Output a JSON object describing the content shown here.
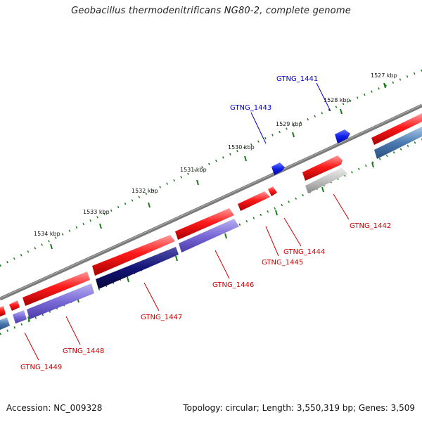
{
  "title": "Geobacillus thermodenitrificans NG80-2, complete genome",
  "footer": {
    "accession": "Accession: NC_009328",
    "summary": "Topology: circular; Length: 3,550,319 bp; Genes: 3,509"
  },
  "colors": {
    "backbone": "#7a7a7a",
    "forward_gene": "#e01010",
    "reverse_gene": "#7060d0",
    "dark_reverse_gene": "#101070",
    "steel_reverse_gene": "#4a7ab0",
    "rna_gene": "#0a10d8",
    "pseudo_gene": "#b8b8b8",
    "tick": "#1a7a1a",
    "label_blue": "#0000cc",
    "label_red": "#cc0000"
  },
  "ticks": [
    "1527 kbp",
    "1528 kbp",
    "1529 kbp",
    "1530 kbp",
    "1531 kbp",
    "1532 kbp",
    "1533 kbp",
    "1534 kbp"
  ],
  "genes": [
    {
      "label": "GTNG_1441",
      "color": "label_blue"
    },
    {
      "label": "GTNG_1443",
      "color": "label_blue"
    },
    {
      "label": "GTNG_1442",
      "color": "label_red"
    },
    {
      "label": "GTNG_1444",
      "color": "label_red"
    },
    {
      "label": "GTNG_1445",
      "color": "label_red"
    },
    {
      "label": "GTNG_1446",
      "color": "label_red"
    },
    {
      "label": "GTNG_1447",
      "color": "label_red"
    },
    {
      "label": "GTNG_1448",
      "color": "label_red"
    },
    {
      "label": "GTNG_1449",
      "color": "label_red"
    }
  ]
}
